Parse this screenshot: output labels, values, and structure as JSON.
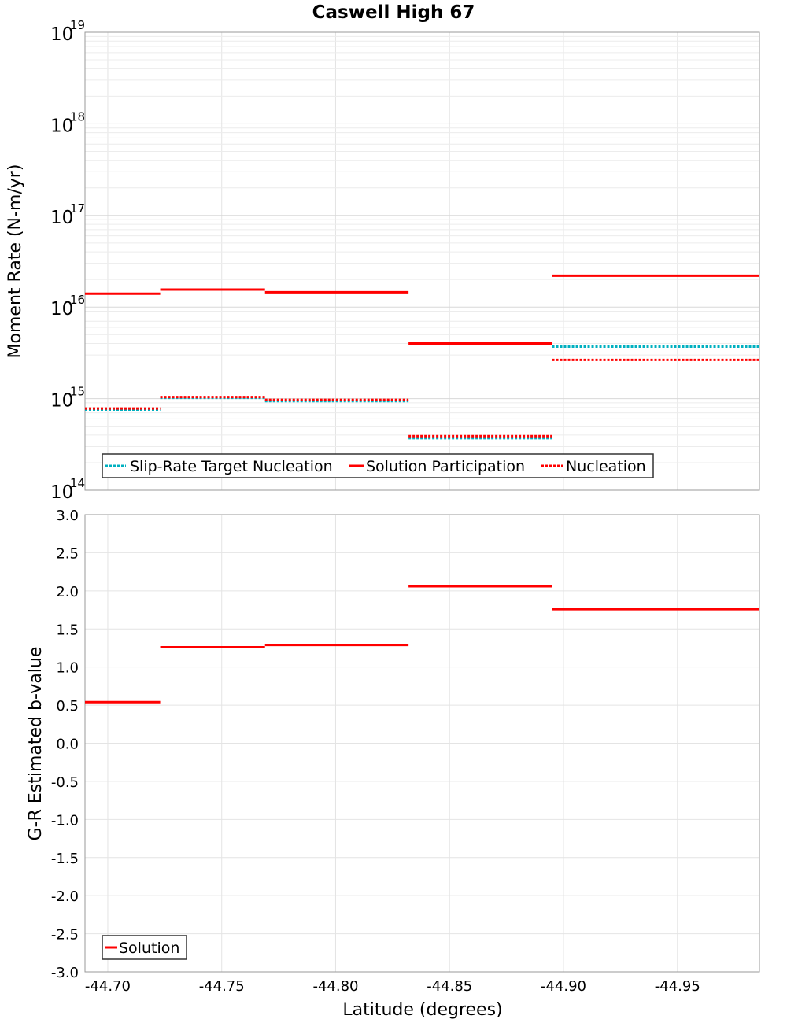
{
  "title": "Caswell High 67",
  "colors": {
    "solution": "#ff0000",
    "target": "#00b0c0",
    "nucleation": "#ff0000"
  },
  "chart_data": [
    {
      "type": "line",
      "style": "step",
      "ylabel": "Moment Rate (N-m/yr)",
      "yscale": "log",
      "ylim": [
        100000000000000.0,
        1e+19
      ],
      "xlim": [
        -44.69,
        -44.986
      ],
      "x_reversed": true,
      "y_ticks": [
        {
          "base": "10",
          "exp": "14"
        },
        {
          "base": "10",
          "exp": "15"
        },
        {
          "base": "10",
          "exp": "16"
        },
        {
          "base": "10",
          "exp": "17"
        },
        {
          "base": "10",
          "exp": "18"
        },
        {
          "base": "10",
          "exp": "19"
        }
      ],
      "grid": true,
      "legend_position": "bottom-left",
      "series": [
        {
          "name": "Slip-Rate Target Nucleation",
          "style": "dotted",
          "color": "#00b0c0",
          "segments": [
            {
              "x0": -44.69,
              "x1": -44.723,
              "y": 760000000000000.0
            },
            {
              "x0": -44.723,
              "x1": -44.769,
              "y": 1020000000000000.0
            },
            {
              "x0": -44.769,
              "x1": -44.832,
              "y": 940000000000000.0
            },
            {
              "x0": -44.832,
              "x1": -44.895,
              "y": 370000000000000.0
            },
            {
              "x0": -44.895,
              "x1": -44.986,
              "y": 3700000000000000.0
            }
          ]
        },
        {
          "name": "Solution Participation",
          "style": "solid",
          "color": "#ff0000",
          "segments": [
            {
              "x0": -44.69,
              "x1": -44.723,
              "y": 1.4e+16
            },
            {
              "x0": -44.723,
              "x1": -44.769,
              "y": 1.55e+16
            },
            {
              "x0": -44.769,
              "x1": -44.832,
              "y": 1.45e+16
            },
            {
              "x0": -44.832,
              "x1": -44.895,
              "y": 4000000000000000.0
            },
            {
              "x0": -44.895,
              "x1": -44.986,
              "y": 2.2e+16
            }
          ]
        },
        {
          "name": "Nucleation",
          "style": "dotted",
          "color": "#ff0000",
          "segments": [
            {
              "x0": -44.69,
              "x1": -44.723,
              "y": 780000000000000.0
            },
            {
              "x0": -44.723,
              "x1": -44.769,
              "y": 1040000000000000.0
            },
            {
              "x0": -44.769,
              "x1": -44.832,
              "y": 970000000000000.0
            },
            {
              "x0": -44.832,
              "x1": -44.895,
              "y": 390000000000000.0
            },
            {
              "x0": -44.895,
              "x1": -44.986,
              "y": 2650000000000000.0
            }
          ]
        }
      ]
    },
    {
      "type": "line",
      "style": "step",
      "xlabel": "Latitude (degrees)",
      "ylabel": "G-R Estimated b-value",
      "ylim": [
        -3.0,
        3.0
      ],
      "xlim": [
        -44.69,
        -44.986
      ],
      "x_reversed": true,
      "x_ticks": [
        "-44.70",
        "-44.75",
        "-44.80",
        "-44.85",
        "-44.90",
        "-44.95"
      ],
      "x_tick_values": [
        -44.7,
        -44.75,
        -44.8,
        -44.85,
        -44.9,
        -44.95
      ],
      "y_ticks": [
        "3.0",
        "2.5",
        "2.0",
        "1.5",
        "1.0",
        "0.5",
        "0.0",
        "-0.5",
        "-1.0",
        "-1.5",
        "-2.0",
        "-2.5",
        "-3.0"
      ],
      "y_tick_values": [
        3.0,
        2.5,
        2.0,
        1.5,
        1.0,
        0.5,
        0.0,
        -0.5,
        -1.0,
        -1.5,
        -2.0,
        -2.5,
        -3.0
      ],
      "grid": true,
      "legend_position": "bottom-left",
      "series": [
        {
          "name": "Solution",
          "style": "solid",
          "color": "#ff0000",
          "segments": [
            {
              "x0": -44.69,
              "x1": -44.723,
              "y": 0.54
            },
            {
              "x0": -44.723,
              "x1": -44.769,
              "y": 1.26
            },
            {
              "x0": -44.769,
              "x1": -44.832,
              "y": 1.29
            },
            {
              "x0": -44.832,
              "x1": -44.895,
              "y": 2.06
            },
            {
              "x0": -44.895,
              "x1": -44.986,
              "y": 1.76
            }
          ]
        }
      ]
    }
  ]
}
